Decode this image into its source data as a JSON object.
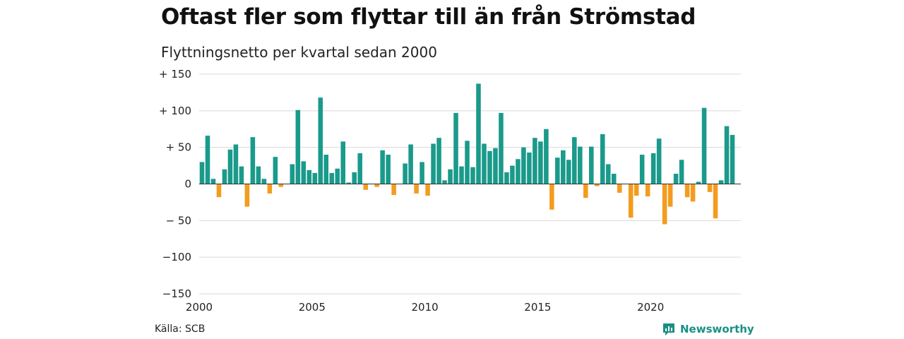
{
  "header": {
    "title": "Oftast fler som flyttar till än från Strömstad",
    "subtitle": "Flyttningsnetto per kvartal sedan 2000"
  },
  "footer": {
    "source": "Källa: SCB",
    "brand": "Newsworthy"
  },
  "colors": {
    "positive": "#1a9a8b",
    "negative": "#f39c1e",
    "grid": "#d9d9d9",
    "brand": "#1a8f84"
  },
  "chart_data": {
    "type": "bar",
    "title": "Oftast fler som flyttar till än från Strömstad",
    "subtitle": "Flyttningsnetto per kvartal sedan 2000",
    "xlabel": "",
    "ylabel": "",
    "ylim": [
      -150,
      150
    ],
    "yticks": [
      150,
      100,
      50,
      0,
      -50,
      -100,
      -150
    ],
    "ytick_labels": [
      "+ 150",
      "+ 100",
      "+  50",
      "0",
      "− 50",
      "−100",
      "−150"
    ],
    "xticks": [
      2000,
      2005,
      2010,
      2015,
      2020
    ],
    "xtick_labels": [
      "2000",
      "2005",
      "2010",
      "2015",
      "2020"
    ],
    "x_start": 2000.0,
    "x_end": 2024.0,
    "grid": true,
    "legend": "none",
    "categories": [
      "2000 K1",
      "2000 K2",
      "2000 K3",
      "2000 K4",
      "2001 K1",
      "2001 K2",
      "2001 K3",
      "2001 K4",
      "2002 K1",
      "2002 K2",
      "2002 K3",
      "2002 K4",
      "2003 K1",
      "2003 K2",
      "2003 K3",
      "2003 K4",
      "2004 K1",
      "2004 K2",
      "2004 K3",
      "2004 K4",
      "2005 K1",
      "2005 K2",
      "2005 K3",
      "2005 K4",
      "2006 K1",
      "2006 K2",
      "2006 K3",
      "2006 K4",
      "2007 K1",
      "2007 K2",
      "2007 K3",
      "2007 K4",
      "2008 K1",
      "2008 K2",
      "2008 K3",
      "2008 K4",
      "2009 K1",
      "2009 K2",
      "2009 K3",
      "2009 K4",
      "2010 K1",
      "2010 K2",
      "2010 K3",
      "2010 K4",
      "2011 K1",
      "2011 K2",
      "2011 K3",
      "2011 K4",
      "2012 K1",
      "2012 K2",
      "2012 K3",
      "2012 K4",
      "2013 K1",
      "2013 K2",
      "2013 K3",
      "2013 K4",
      "2014 K1",
      "2014 K2",
      "2014 K3",
      "2014 K4",
      "2015 K1",
      "2015 K2",
      "2015 K3",
      "2015 K4",
      "2016 K1",
      "2016 K2",
      "2016 K3",
      "2016 K4",
      "2017 K1",
      "2017 K2",
      "2017 K3",
      "2017 K4",
      "2018 K1",
      "2018 K2",
      "2018 K3",
      "2018 K4",
      "2019 K1",
      "2019 K2",
      "2019 K3",
      "2019 K4",
      "2020 K1",
      "2020 K2",
      "2020 K3",
      "2020 K4",
      "2021 K1",
      "2021 K2",
      "2021 K3",
      "2021 K4",
      "2022 K1",
      "2022 K2",
      "2022 K3",
      "2022 K4",
      "2023 K1",
      "2023 K2",
      "2023 K3",
      "2023 K4"
    ],
    "values": [
      30,
      66,
      7,
      -18,
      20,
      47,
      54,
      24,
      -31,
      64,
      24,
      7,
      -13,
      37,
      -4,
      0,
      27,
      101,
      31,
      19,
      15,
      118,
      40,
      15,
      21,
      58,
      2,
      16,
      42,
      -8,
      0,
      -4,
      46,
      40,
      -15,
      0,
      28,
      54,
      -13,
      30,
      -16,
      55,
      63,
      5,
      20,
      97,
      24,
      59,
      23,
      137,
      55,
      45,
      49,
      97,
      16,
      25,
      34,
      50,
      43,
      63,
      58,
      75,
      -35,
      36,
      46,
      33,
      64,
      51,
      -19,
      51,
      -3,
      68,
      27,
      14,
      -12,
      0,
      -46,
      -16,
      40,
      -17,
      42,
      62,
      -55,
      -31,
      14,
      33,
      -18,
      -24,
      3,
      104,
      -11,
      -47,
      5,
      79,
      67,
      0
    ]
  }
}
